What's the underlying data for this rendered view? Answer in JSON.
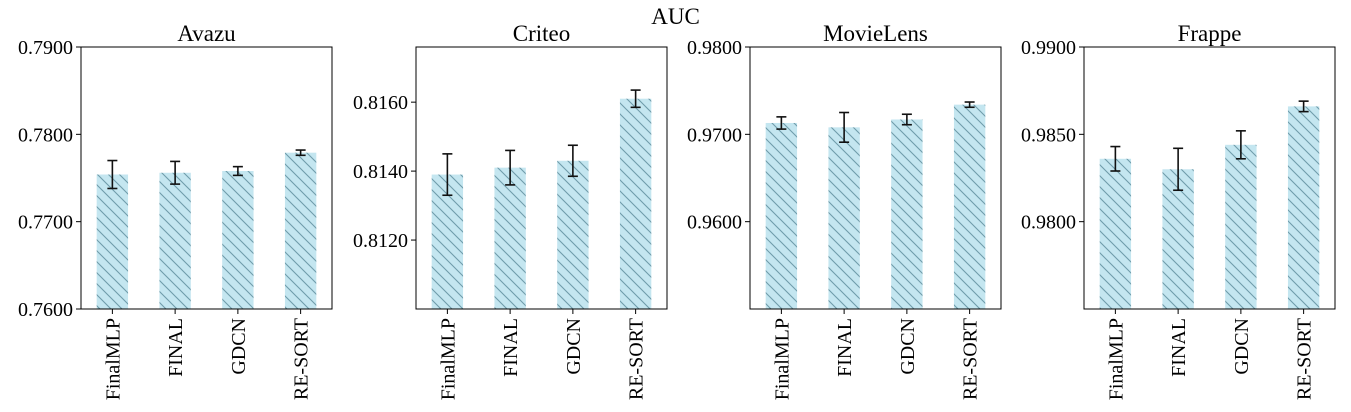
{
  "figure": {
    "suptitle": "AUC"
  },
  "style": {
    "bar_fill": "#c4e6f0",
    "hatch_color": "#6f9cab",
    "error_color": "#111111",
    "axis_color": "#000000"
  },
  "chart_data": [
    {
      "type": "bar",
      "title": "Avazu",
      "categories": [
        "FinalMLP",
        "FINAL",
        "GDCN",
        "RE-SORT"
      ],
      "values": [
        0.7754,
        0.7756,
        0.7758,
        0.7779
      ],
      "errors": [
        0.0016,
        0.0013,
        0.0005,
        0.0003
      ],
      "ylim": [
        0.76,
        0.79
      ],
      "yticks": [
        0.76,
        0.77,
        0.78,
        0.79
      ],
      "ytick_labels": [
        "0.7600",
        "0.7700",
        "0.7800",
        "0.7900"
      ]
    },
    {
      "type": "bar",
      "title": "Criteo",
      "categories": [
        "FinalMLP",
        "FINAL",
        "GDCN",
        "RE-SORT"
      ],
      "values": [
        0.8139,
        0.8141,
        0.8143,
        0.8161
      ],
      "errors": [
        0.0006,
        0.0005,
        0.00045,
        0.00025
      ],
      "ylim": [
        0.81,
        0.8176
      ],
      "yticks": [
        0.812,
        0.814,
        0.816
      ],
      "ytick_labels": [
        "0.8120",
        "0.8140",
        "0.8160"
      ]
    },
    {
      "type": "bar",
      "title": "MovieLens",
      "categories": [
        "FinalMLP",
        "FINAL",
        "GDCN",
        "RE-SORT"
      ],
      "values": [
        0.9713,
        0.9708,
        0.9717,
        0.9734
      ],
      "errors": [
        0.0007,
        0.0017,
        0.0006,
        0.0003
      ],
      "ylim": [
        0.95,
        0.98
      ],
      "yticks": [
        0.96,
        0.97,
        0.98
      ],
      "ytick_labels": [
        "0.9600",
        "0.9700",
        "0.9800"
      ]
    },
    {
      "type": "bar",
      "title": "Frappe",
      "categories": [
        "FinalMLP",
        "FINAL",
        "GDCN",
        "RE-SORT"
      ],
      "values": [
        0.9836,
        0.983,
        0.9844,
        0.9866
      ],
      "errors": [
        0.0007,
        0.0012,
        0.0008,
        0.0003
      ],
      "ylim": [
        0.975,
        0.99
      ],
      "yticks": [
        0.98,
        0.985,
        0.99
      ],
      "ytick_labels": [
        "0.9800",
        "0.9850",
        "0.9900"
      ]
    }
  ]
}
